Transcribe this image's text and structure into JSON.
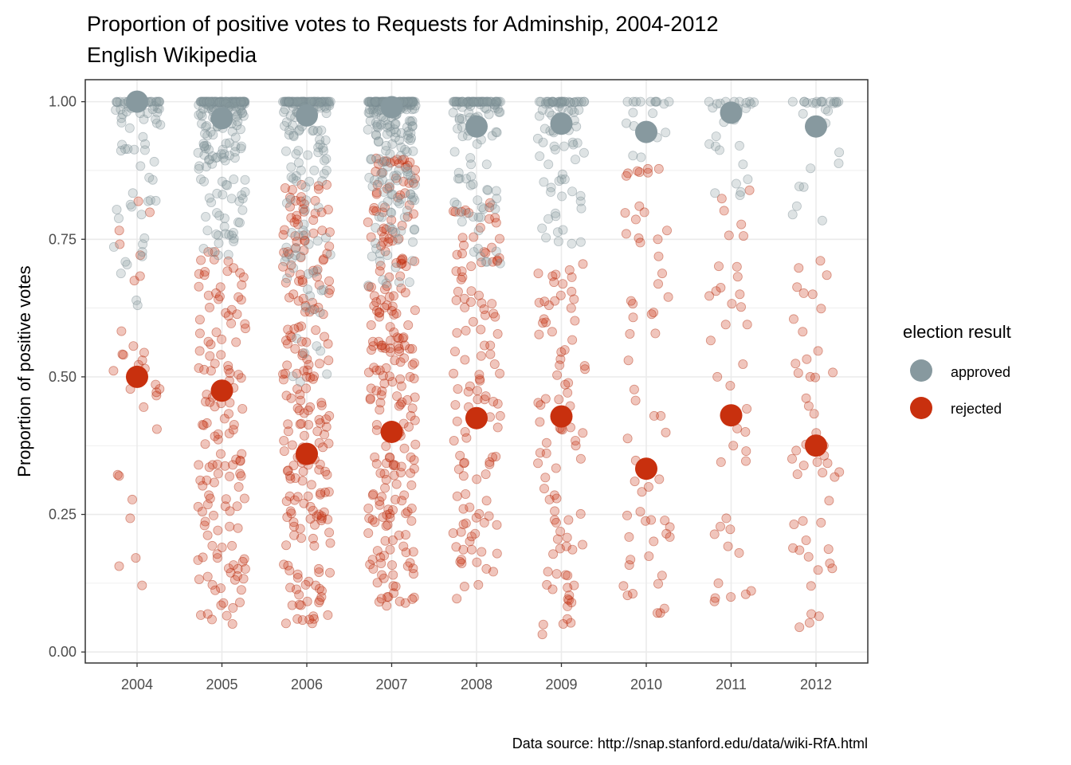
{
  "colors": {
    "approved": "#87999f",
    "rejected": "#c8300e",
    "grid": "#ebebeb",
    "panel_border": "#333333",
    "tick_text": "#4d4d4d"
  },
  "caption": "Data source: http://snap.stanford.edu/data/wiki-RfA.html",
  "chart_data": {
    "type": "scatter",
    "title": "Proportion of positive votes to Requests for Adminship, 2004-2012",
    "subtitle": "English Wikipedia",
    "xlabel": "",
    "ylabel": "Proportion of positive votes",
    "categories": [
      "2004",
      "2005",
      "2006",
      "2007",
      "2008",
      "2009",
      "2010",
      "2011",
      "2012"
    ],
    "ylim": [
      -0.02,
      1.04
    ],
    "y_ticks": [
      0.0,
      0.25,
      0.5,
      0.75,
      1.0
    ],
    "y_tick_labels": [
      "0.00",
      "0.25",
      "0.50",
      "0.75",
      "1.00"
    ],
    "grid": true,
    "legend": {
      "title": "election result",
      "position": "right",
      "entries": [
        "approved",
        "rejected"
      ]
    },
    "series": [
      {
        "name": "approved",
        "mean_values": [
          1.0,
          0.97,
          0.975,
          0.99,
          0.955,
          0.96,
          0.945,
          0.98,
          0.955
        ],
        "point_counts": [
          80,
          220,
          180,
          260,
          130,
          90,
          18,
          30,
          28
        ],
        "value_ranges": [
          [
            0.63,
            1.0
          ],
          [
            0.72,
            1.0
          ],
          [
            0.48,
            1.0
          ],
          [
            0.66,
            1.0
          ],
          [
            0.7,
            1.0
          ],
          [
            0.74,
            1.0
          ],
          [
            0.77,
            1.0
          ],
          [
            0.81,
            1.0
          ],
          [
            0.78,
            1.0
          ]
        ]
      },
      {
        "name": "rejected",
        "mean_values": [
          0.5,
          0.475,
          0.36,
          0.4,
          0.425,
          0.428,
          0.333,
          0.43,
          0.375
        ],
        "point_counts": [
          30,
          140,
          220,
          240,
          120,
          90,
          60,
          40,
          50
        ],
        "value_ranges": [
          [
            0.06,
            0.82
          ],
          [
            0.05,
            0.73
          ],
          [
            0.05,
            0.85
          ],
          [
            0.08,
            0.9
          ],
          [
            0.09,
            0.83
          ],
          [
            0.03,
            0.72
          ],
          [
            0.05,
            0.88
          ],
          [
            0.08,
            0.84
          ],
          [
            0.04,
            0.72
          ]
        ]
      }
    ]
  }
}
